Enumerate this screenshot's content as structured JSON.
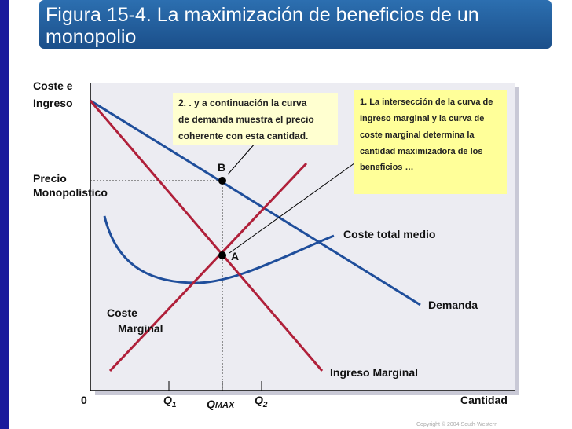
{
  "header": {
    "title_lines": [
      "Figura 15-4. La maximización de beneficios de un",
      "monopolio"
    ]
  },
  "axes": {
    "y_label_lines": [
      "Coste e",
      "Ingreso"
    ],
    "x_label": "Cantidad",
    "origin": "0",
    "q1": {
      "main": "Q",
      "sub": "1"
    },
    "qmax": {
      "main": "Q",
      "sub": "MAX"
    },
    "q2": {
      "main": "Q",
      "sub": "2"
    }
  },
  "price_label_lines": [
    "Precio",
    "Monopolístico"
  ],
  "points": {
    "a": "A",
    "b": "B"
  },
  "curves": {
    "atc": "Coste total medio",
    "demand": "Demanda",
    "mc_lines": [
      "Coste",
      "Marginal"
    ],
    "mr": "Ingreso Marginal"
  },
  "notes": {
    "note2_lines": [
      "2. .    y a continuación la curva",
      "de demanda muestra el precio",
      "coherente con esta cantidad."
    ],
    "note1_lines": [
      "1. La intersección de la curva de",
      "Ingreso marginal y la curva de",
      "coste marginal determina la",
      "cantidad maximizadora de los",
      "beneficios …"
    ]
  },
  "footer": {
    "copyright": "Copyright © 2004  South-Western"
  }
}
